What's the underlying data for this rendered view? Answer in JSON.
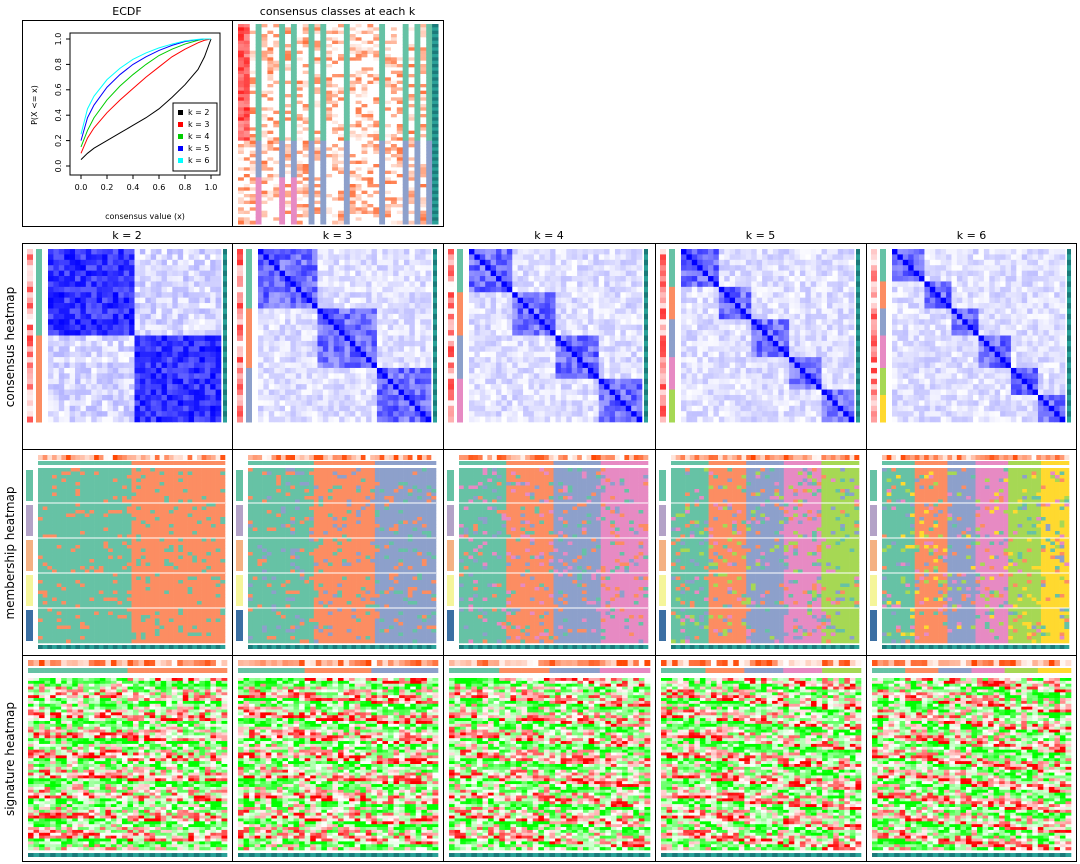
{
  "ecdf_panel": {
    "title": "ECDF",
    "xlabel": "consensus value (x)",
    "ylabel": "P(X <= x)",
    "xticks": [
      "0.0",
      "0.2",
      "0.4",
      "0.6",
      "0.8",
      "1.0"
    ],
    "yticks": [
      "0.0",
      "0.2",
      "0.4",
      "0.6",
      "0.8",
      "1.0"
    ]
  },
  "classes_panel": {
    "title": "consensus classes at each k"
  },
  "column_titles": [
    "k = 2",
    "k = 3",
    "k = 4",
    "k = 5",
    "k = 6"
  ],
  "row_labels": [
    "consensus heatmap",
    "membership heatmap",
    "signature heatmap"
  ],
  "palette": {
    "class_colors": [
      "#66c2a5",
      "#fc8d62",
      "#8da0cb",
      "#e78ac3",
      "#a6d854",
      "#ffd92f"
    ],
    "consensus_high": "#0000ff",
    "signature_up": "#ff0000",
    "signature_down": "#00ff00",
    "silhouette": "#ff4500",
    "annotation_strip": "#1b7a7a"
  },
  "chart_data": {
    "type": "line",
    "title": "ECDF",
    "xlabel": "consensus value (x)",
    "ylabel": "P(X <= x)",
    "xlim": [
      0,
      1
    ],
    "ylim": [
      0,
      1
    ],
    "legend_position": "bottom-right",
    "x": [
      0.0,
      0.05,
      0.1,
      0.2,
      0.3,
      0.4,
      0.5,
      0.6,
      0.7,
      0.8,
      0.9,
      0.95,
      1.0
    ],
    "series": [
      {
        "name": "k = 2",
        "color": "#000000",
        "values": [
          0.05,
          0.1,
          0.14,
          0.2,
          0.26,
          0.32,
          0.38,
          0.45,
          0.54,
          0.64,
          0.76,
          0.86,
          1.0
        ]
      },
      {
        "name": "k = 3",
        "color": "#ff0000",
        "values": [
          0.1,
          0.22,
          0.3,
          0.42,
          0.52,
          0.61,
          0.7,
          0.78,
          0.86,
          0.92,
          0.97,
          0.99,
          1.0
        ]
      },
      {
        "name": "k = 4",
        "color": "#00cd00",
        "values": [
          0.15,
          0.28,
          0.38,
          0.52,
          0.63,
          0.72,
          0.8,
          0.87,
          0.92,
          0.96,
          0.99,
          1.0,
          1.0
        ]
      },
      {
        "name": "k = 5",
        "color": "#0000ff",
        "values": [
          0.2,
          0.38,
          0.48,
          0.62,
          0.72,
          0.8,
          0.86,
          0.91,
          0.95,
          0.98,
          0.995,
          1.0,
          1.0
        ]
      },
      {
        "name": "k = 6",
        "color": "#00ffff",
        "values": [
          0.25,
          0.45,
          0.55,
          0.68,
          0.77,
          0.84,
          0.89,
          0.93,
          0.96,
          0.985,
          0.997,
          1.0,
          1.0
        ]
      }
    ]
  }
}
